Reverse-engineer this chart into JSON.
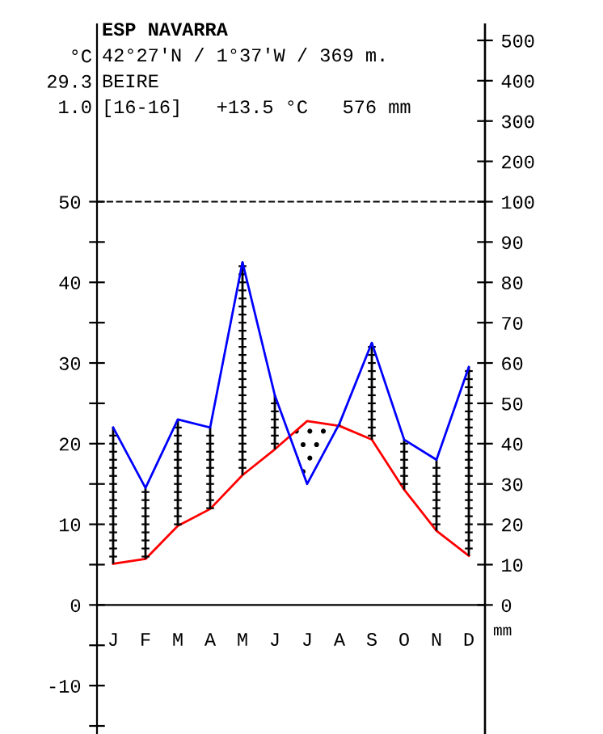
{
  "chart_data": {
    "type": "line",
    "title": "ESP NAVARRA",
    "subtitle": "42°27'N / 1°37'W / 369 m.",
    "annotations": [
      "°C\n29.3\n1.0",
      "BEIRE",
      "[16-16]   +13.5 °C   576 mm",
      "mm"
    ],
    "categories": [
      "J",
      "F",
      "M",
      "A",
      "M",
      "J",
      "J",
      "A",
      "S",
      "O",
      "N",
      "D"
    ],
    "series": [
      {
        "color": "#ff0000",
        "values": [
          5.1,
          5.7,
          9.8,
          11.9,
          16.1,
          19.3,
          22.8,
          22.2,
          20.5,
          14.3,
          9.2,
          6.1
        ]
      },
      {
        "axis": "y2",
        "color": "#0000ff",
        "values": [
          44,
          29,
          46,
          44,
          85,
          52,
          30,
          45,
          65,
          41,
          36,
          59
        ]
      }
    ],
    "ylim": [
      -16,
      72
    ],
    "yticks": [
      {
        "value": -15,
        "label": null
      },
      -10,
      {
        "value": -5,
        "label": null
      },
      0,
      {
        "value": 5,
        "label": null
      },
      10,
      {
        "value": 15,
        "label": null
      },
      20,
      {
        "value": 25,
        "label": null
      },
      30,
      {
        "value": 35,
        "label": null
      },
      40,
      {
        "value": 45,
        "label": null
      },
      50
    ],
    "y2lim": [
      -32,
      144
    ],
    "y2ticks": [
      0,
      10,
      20,
      30,
      40,
      50,
      60,
      70,
      80,
      90,
      100
    ],
    "y3lim": [
      -1220,
      540
    ],
    "y3ticks": [
      200,
      300,
      400,
      500
    ],
    "ref_lines": [
      {
        "axis": "y",
        "value": 50,
        "color": "#000000",
        "line_style": "dashed"
      }
    ],
    "marker": "none",
    "line_style": "solid",
    "grid": false,
    "legend": false
  }
}
